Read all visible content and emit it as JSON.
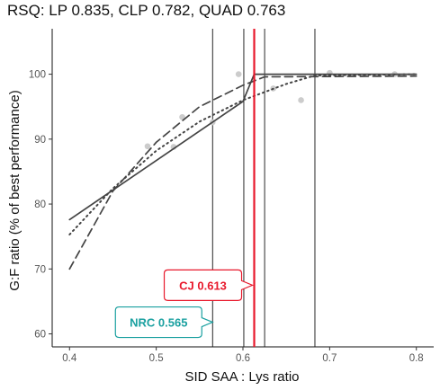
{
  "chart_data": {
    "type": "line",
    "title": "RSQ: LP 0.835, CLP 0.782, QUAD 0.763",
    "xlabel": "SID SAA : Lys ratio",
    "ylabel": "G:F ratio (% of best performance)",
    "xlim": [
      0.38,
      0.82
    ],
    "ylim": [
      58,
      107
    ],
    "x_ticks": [
      "0.4",
      "0.5",
      "0.6",
      "0.7",
      "0.8"
    ],
    "y_ticks": [
      "60",
      "70",
      "80",
      "90",
      "100"
    ],
    "grid": false,
    "points": [
      {
        "x": 0.49,
        "y": 88.9
      },
      {
        "x": 0.52,
        "y": 88.8
      },
      {
        "x": 0.53,
        "y": 93.4
      },
      {
        "x": 0.565,
        "y": 92.6
      },
      {
        "x": 0.595,
        "y": 100.0
      },
      {
        "x": 0.635,
        "y": 97.8
      },
      {
        "x": 0.667,
        "y": 96.0
      },
      {
        "x": 0.7,
        "y": 100.2
      },
      {
        "x": 0.775,
        "y": 100.0
      }
    ],
    "series": [
      {
        "style": "solid",
        "x": [
          0.4,
          0.5,
          0.6,
          0.613,
          0.8
        ],
        "y": [
          77.6,
          86.7,
          95.8,
          100.0,
          100.0
        ]
      },
      {
        "style": "dashed",
        "x": [
          0.4,
          0.45,
          0.5,
          0.55,
          0.6,
          0.625,
          0.8
        ],
        "y": [
          70.0,
          82.0,
          89.5,
          95.0,
          98.3,
          99.6,
          99.7
        ]
      },
      {
        "style": "dotted",
        "x": [
          0.4,
          0.45,
          0.5,
          0.55,
          0.6,
          0.65,
          0.683,
          0.8
        ],
        "y": [
          75.3,
          82.4,
          88.2,
          92.7,
          96.0,
          98.5,
          99.8,
          100.0
        ]
      }
    ],
    "vlines": [
      0.565,
      0.601,
      0.625,
      0.683
    ],
    "highlight_line": {
      "x": 0.613,
      "color": "#e8192c"
    },
    "annotations": [
      {
        "text": "CJ 0.613",
        "color": "#e8192c",
        "y": 67.5
      },
      {
        "text": "NRC 0.565",
        "color": "#1aa0a0",
        "y": 61.8
      }
    ]
  }
}
